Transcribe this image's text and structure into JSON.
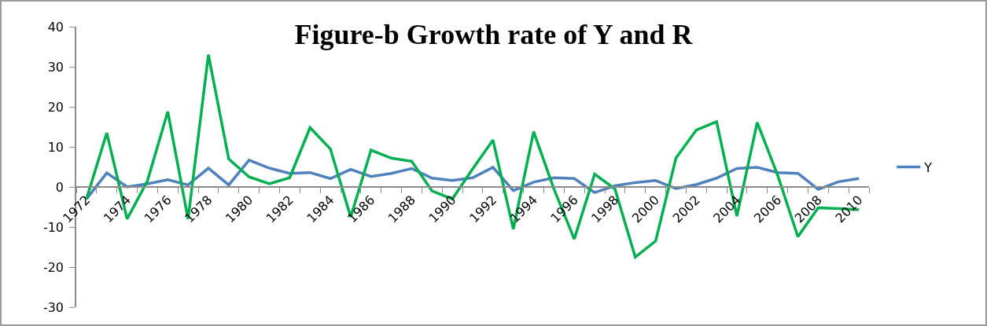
{
  "chart_data": {
    "type": "line",
    "title": "Figure-b Growth rate of Y and R",
    "categories": [
      "1972",
      null,
      "1974",
      null,
      "1976",
      null,
      "1978",
      null,
      "1980",
      null,
      "1982",
      null,
      "1984",
      null,
      "1986",
      null,
      "1988",
      null,
      "1990",
      null,
      "1992",
      null,
      "1994",
      null,
      "1996",
      null,
      "1998",
      null,
      "2000",
      null,
      "2002",
      null,
      "2004",
      null,
      "2006",
      null,
      "2008",
      null,
      "2010"
    ],
    "series": [
      {
        "name": "Y",
        "color": "#4f81bd",
        "values": [
          -3,
          3.5,
          0,
          0.8,
          1.8,
          0.5,
          4.7,
          0.5,
          6.7,
          4.7,
          3.4,
          3.6,
          2.1,
          4.4,
          2.6,
          3.4,
          4.6,
          2.2,
          1.6,
          2.3,
          4.9,
          -0.9,
          1.2,
          2.3,
          2.1,
          -1.4,
          0.3,
          1.1,
          1.6,
          -0.4,
          0.6,
          2.2,
          4.6,
          4.9,
          3.6,
          3.4,
          -0.6,
          1.3,
          2.1
        ]
      },
      {
        "color": "#00b050",
        "values": [
          -3,
          13.5,
          -8,
          1.5,
          18.8,
          -8,
          33,
          7,
          2.5,
          0.8,
          2.3,
          14.8,
          9.5,
          -7.5,
          9.2,
          7.2,
          6.4,
          -1,
          -3,
          4.5,
          11.7,
          -10.5,
          13.8,
          -0.5,
          -13,
          3.2,
          -0.5,
          -17.5,
          -13.5,
          7.2,
          14.2,
          16.3,
          -7.3,
          16.1,
          3,
          -12.4,
          -5.2,
          -5.4,
          -5.7
        ]
      }
    ],
    "ylim": [
      -30,
      40
    ],
    "yticks": [
      -30,
      -20,
      -10,
      0,
      10,
      20,
      30,
      40
    ],
    "grid": false,
    "legend": "right",
    "marker": "none",
    "line_style": "solid"
  }
}
